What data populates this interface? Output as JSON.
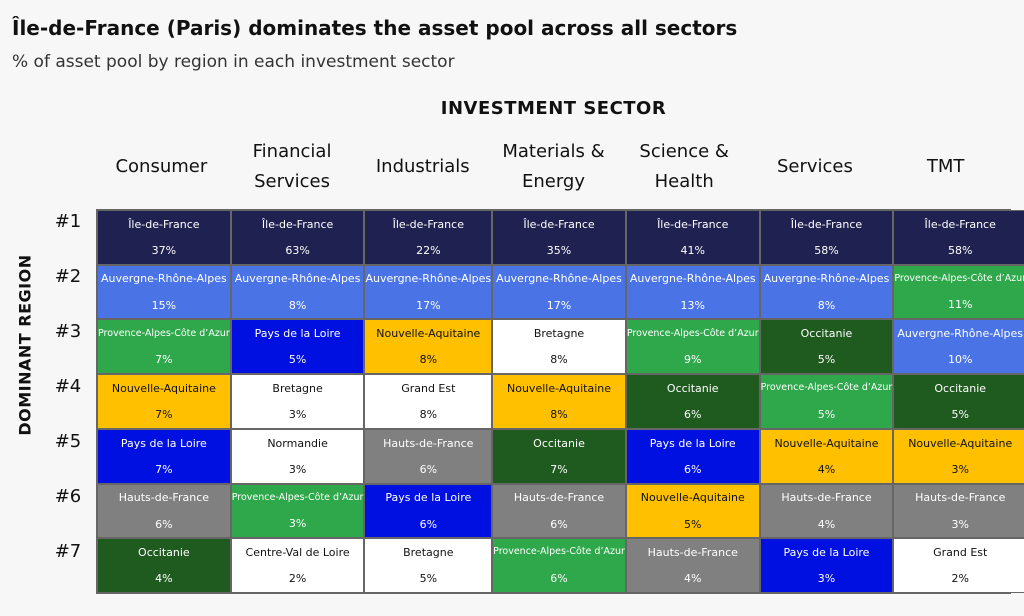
{
  "header": {
    "title": "Île-de-France (Paris) dominates the asset pool across all sectors",
    "subtitle": "% of asset pool by region in each investment sector"
  },
  "x_heading": "INVESTMENT SECTOR",
  "y_heading": "DOMINANT REGION",
  "columns": [
    "Consumer",
    "Financial Services",
    "Industrials",
    "Materials & Energy",
    "Science & Health",
    "Services",
    "TMT"
  ],
  "ranks": [
    "#1",
    "#2",
    "#3",
    "#4",
    "#5",
    "#6",
    "#7"
  ],
  "palette": {
    "Île-de-France": {
      "fill": "#1f2150",
      "text": "#ffffff"
    },
    "Auvergne-Rhône-Alpes": {
      "fill": "#4a74e6",
      "text": "#ffffff"
    },
    "Provence-Alpes-Côte d’Azur": {
      "fill": "#2ea84a",
      "text": "#ffffff"
    },
    "Nouvelle-Aquitaine": {
      "fill": "#ffc000",
      "text": "#111111"
    },
    "Pays de la Loire": {
      "fill": "#0010e0",
      "text": "#ffffff"
    },
    "Bretagne": {
      "fill": "#ffffff",
      "text": "#111111"
    },
    "Grand Est": {
      "fill": "#ffffff",
      "text": "#111111"
    },
    "Normandie": {
      "fill": "#ffffff",
      "text": "#111111"
    },
    "Centre-Val de Loire": {
      "fill": "#ffffff",
      "text": "#111111"
    },
    "Hauts-de-France": {
      "fill": "#808080",
      "text": "#ffffff"
    },
    "Occitanie": {
      "fill": "#1f5a1f",
      "text": "#ffffff"
    }
  },
  "table": {
    "rows": [
      [
        [
          "Île-de-France",
          "37%"
        ],
        [
          "Île-de-France",
          "63%"
        ],
        [
          "Île-de-France",
          "22%"
        ],
        [
          "Île-de-France",
          "35%"
        ],
        [
          "Île-de-France",
          "41%"
        ],
        [
          "Île-de-France",
          "58%"
        ],
        [
          "Île-de-France",
          "58%"
        ]
      ],
      [
        [
          "Auvergne-Rhône-Alpes",
          "15%"
        ],
        [
          "Auvergne-Rhône-Alpes",
          "8%"
        ],
        [
          "Auvergne-Rhône-Alpes",
          "17%"
        ],
        [
          "Auvergne-Rhône-Alpes",
          "17%"
        ],
        [
          "Auvergne-Rhône-Alpes",
          "13%"
        ],
        [
          "Auvergne-Rhône-Alpes",
          "8%"
        ],
        [
          "Provence-Alpes-Côte d’Azur",
          "11%"
        ]
      ],
      [
        [
          "Provence-Alpes-Côte d’Azur",
          "7%"
        ],
        [
          "Pays de la Loire",
          "5%"
        ],
        [
          "Nouvelle-Aquitaine",
          "8%"
        ],
        [
          "Bretagne",
          "8%"
        ],
        [
          "Provence-Alpes-Côte d’Azur",
          "9%"
        ],
        [
          "Occitanie",
          "5%"
        ],
        [
          "Auvergne-Rhône-Alpes",
          "10%"
        ]
      ],
      [
        [
          "Nouvelle-Aquitaine",
          "7%"
        ],
        [
          "Bretagne",
          "3%"
        ],
        [
          "Grand Est",
          "8%"
        ],
        [
          "Nouvelle-Aquitaine",
          "8%"
        ],
        [
          "Occitanie",
          "6%"
        ],
        [
          "Provence-Alpes-Côte d’Azur",
          "5%"
        ],
        [
          "Occitanie",
          "5%"
        ]
      ],
      [
        [
          "Pays de la Loire",
          "7%"
        ],
        [
          "Normandie",
          "3%"
        ],
        [
          "Hauts-de-France",
          "6%"
        ],
        [
          "Occitanie",
          "7%"
        ],
        [
          "Pays de la Loire",
          "6%"
        ],
        [
          "Nouvelle-Aquitaine",
          "4%"
        ],
        [
          "Nouvelle-Aquitaine",
          "3%"
        ]
      ],
      [
        [
          "Hauts-de-France",
          "6%"
        ],
        [
          "Provence-Alpes-Côte d’Azur",
          "3%"
        ],
        [
          "Pays de la Loire",
          "6%"
        ],
        [
          "Hauts-de-France",
          "6%"
        ],
        [
          "Nouvelle-Aquitaine",
          "5%"
        ],
        [
          "Hauts-de-France",
          "4%"
        ],
        [
          "Hauts-de-France",
          "3%"
        ]
      ],
      [
        [
          "Occitanie",
          "4%"
        ],
        [
          "Centre-Val de Loire",
          "2%"
        ],
        [
          "Bretagne",
          "5%"
        ],
        [
          "Provence-Alpes-Côte d’Azur",
          "6%"
        ],
        [
          "Hauts-de-France",
          "4%"
        ],
        [
          "Pays de la Loire",
          "3%"
        ],
        [
          "Grand Est",
          "2%"
        ]
      ]
    ]
  }
}
